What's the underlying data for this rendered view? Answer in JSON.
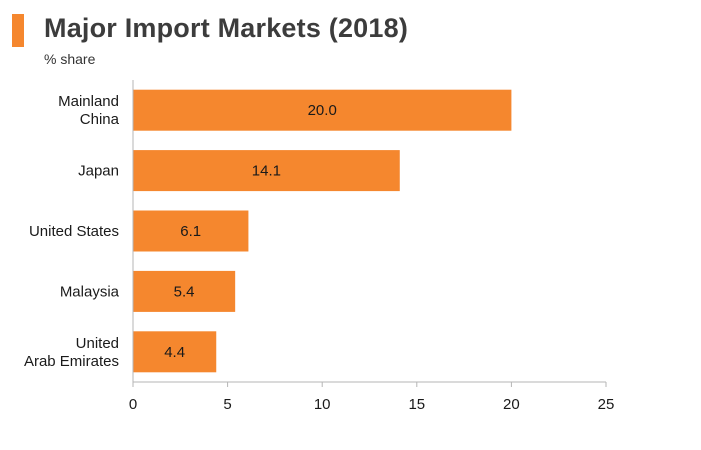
{
  "header": {
    "title": "Major Import Markets (2018)",
    "subtitle": "% share"
  },
  "colors": {
    "bar": "#f5872e",
    "title_marker": "#f5872e",
    "axis": "#b5b5b5"
  },
  "chart_data": {
    "type": "bar",
    "orientation": "horizontal",
    "title": "Major Import Markets (2018)",
    "subtitle": "% share",
    "categories": [
      [
        "Mainland",
        "China"
      ],
      [
        "Japan"
      ],
      [
        "United States"
      ],
      [
        "Malaysia"
      ],
      [
        "United",
        "Arab Emirates"
      ]
    ],
    "values": [
      20.0,
      14.1,
      6.1,
      5.4,
      4.4
    ],
    "value_labels": [
      "20.0",
      "14.1",
      "6.1",
      "5.4",
      "4.4"
    ],
    "xlim": [
      0,
      25
    ],
    "xticks": [
      "0",
      "5",
      "10",
      "15",
      "20",
      "25"
    ],
    "grid": false,
    "legend": "none"
  }
}
